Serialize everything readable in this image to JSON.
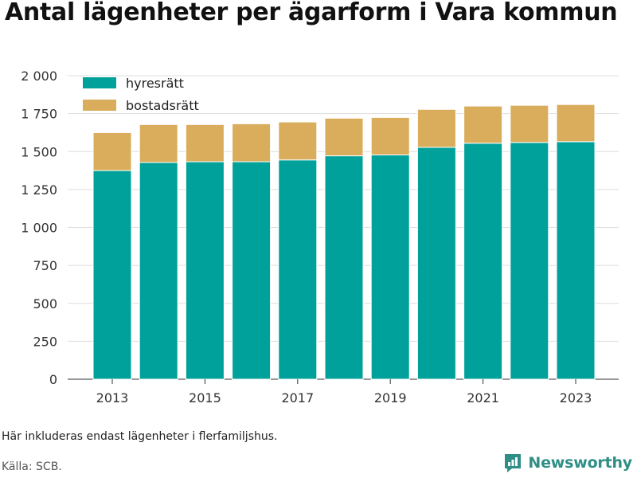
{
  "title": "Antal lägenheter per ägarform i Vara kommun",
  "note": "Här inkluderas endast lägenheter i flerfamiljshus.",
  "source": "Källa: SCB.",
  "brand": "Newsworthy",
  "colors": {
    "hyresratt": "#00a19a",
    "bostadsratt": "#d9ad5c",
    "grid": "#dddddd",
    "brand": "#2f8f86"
  },
  "chart_data": {
    "type": "bar",
    "stacked": true,
    "x": [
      2013,
      2014,
      2015,
      2016,
      2017,
      2018,
      2019,
      2020,
      2021,
      2022,
      2023
    ],
    "xticks": [
      "2013",
      "2015",
      "2017",
      "2019",
      "2021",
      "2023"
    ],
    "series": [
      {
        "name": "hyresrätt",
        "values": [
          1375,
          1428,
          1433,
          1433,
          1445,
          1472,
          1478,
          1528,
          1555,
          1560,
          1565
        ]
      },
      {
        "name": "bostadsrätt",
        "values": [
          250,
          250,
          245,
          250,
          250,
          248,
          247,
          250,
          245,
          245,
          245
        ]
      }
    ],
    "ylim": [
      0,
      2000
    ],
    "yticks": [
      0,
      250,
      500,
      750,
      1000,
      1250,
      1500,
      1750,
      2000
    ],
    "ytick_labels": [
      "0",
      "250",
      "500",
      "750",
      "1 000",
      "1 250",
      "1 500",
      "1 750",
      "2 000"
    ],
    "grid": true,
    "legend_position": "top-left"
  }
}
